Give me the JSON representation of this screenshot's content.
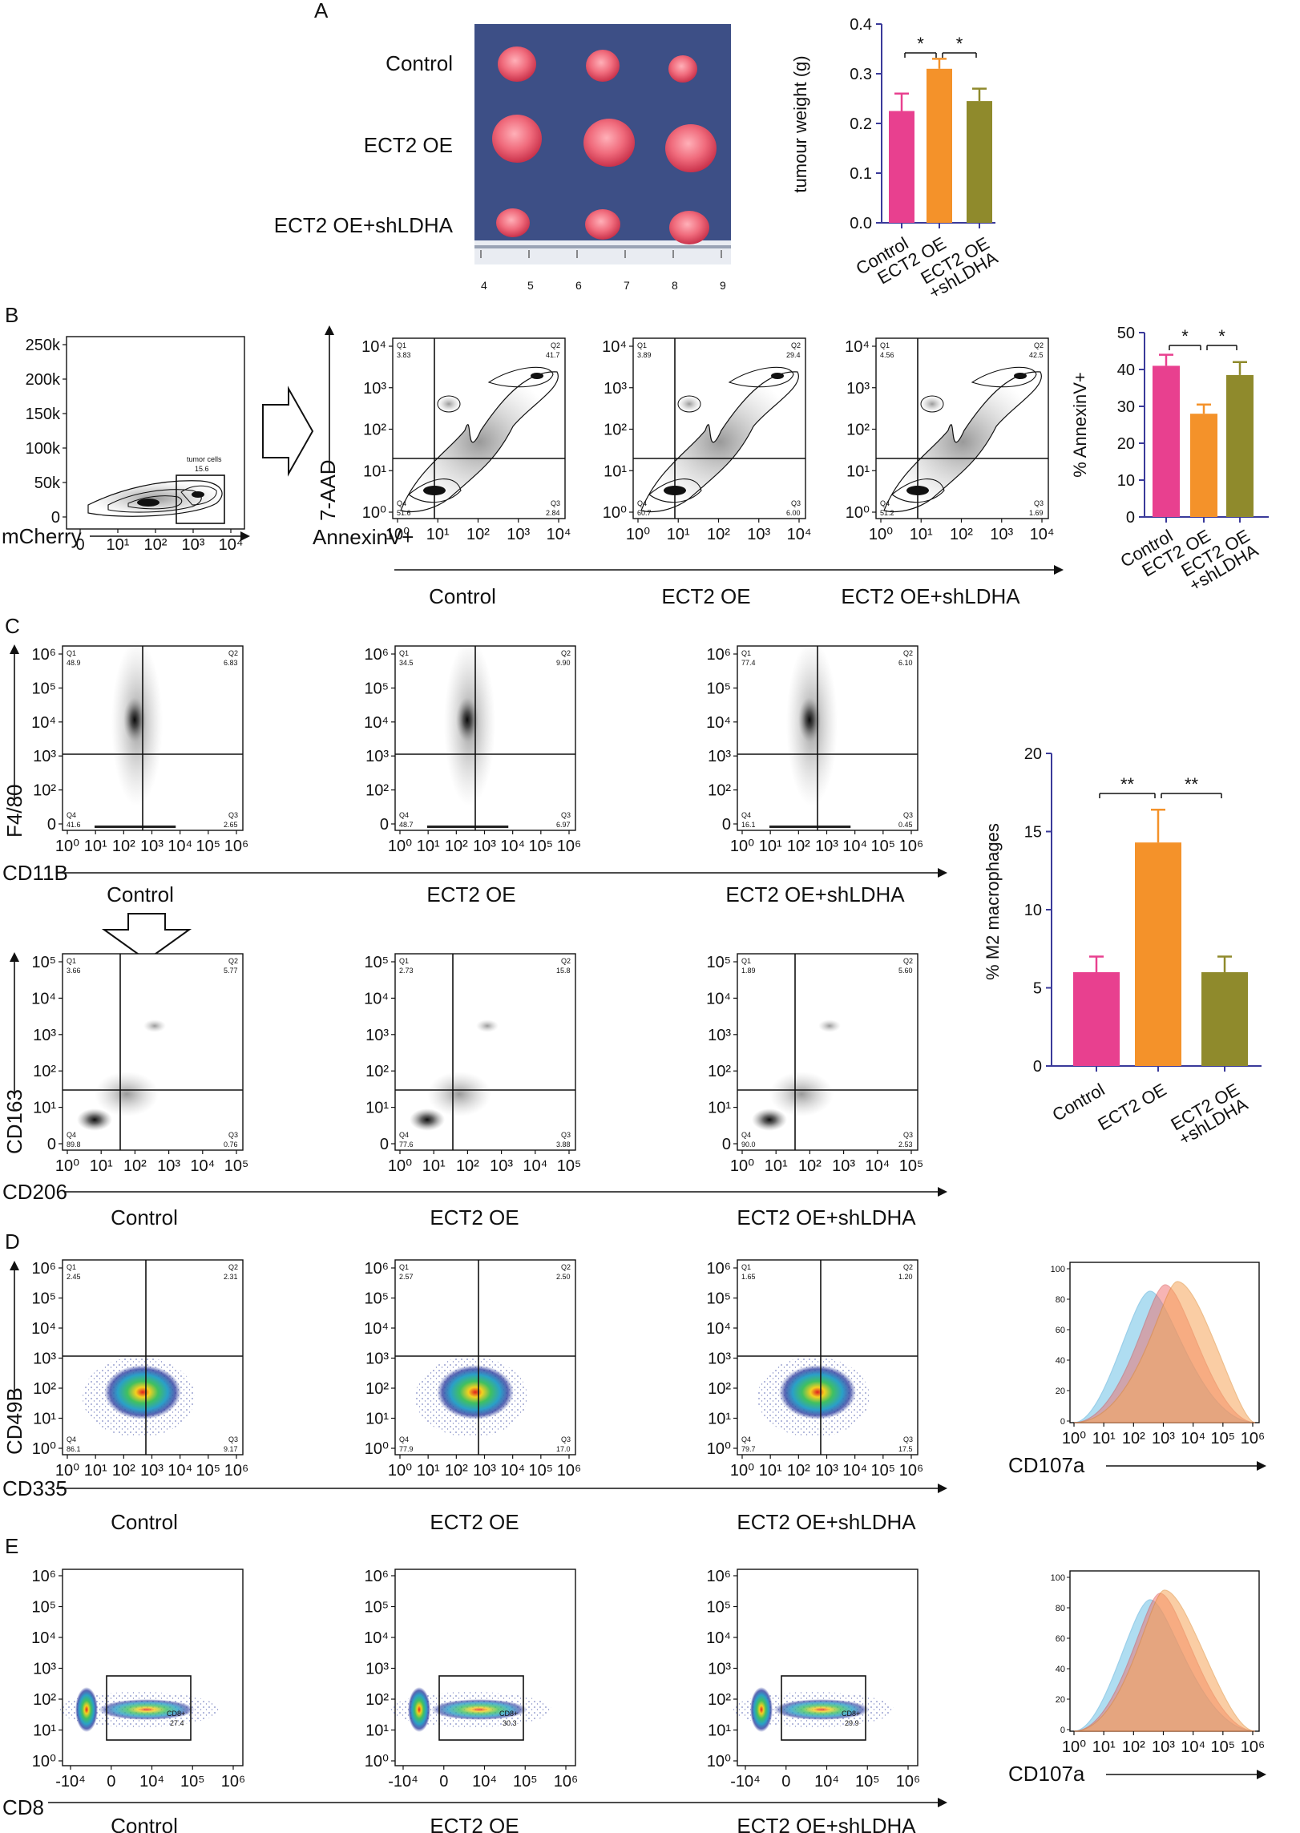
{
  "panels": {
    "A": "A",
    "B": "B",
    "C": "C",
    "D": "D",
    "E": "E"
  },
  "colors": {
    "control": "#e8408f",
    "ect2": "#f4922a",
    "sh": "#8f8a2c",
    "axis": "#3a3a9a",
    "hist_blue": "#6fc3e6",
    "hist_red": "#f06c6c",
    "hist_orange": "#f7a65a"
  },
  "groups": [
    "Control",
    "ECT2 OE",
    "ECT2 OE+shLDHA"
  ],
  "photo": {
    "rows": [
      "Control",
      "ECT2 OE",
      "ECT2 OE+shLDHA"
    ],
    "ruler": [
      "4",
      "5",
      "6",
      "7",
      "8",
      "9"
    ]
  },
  "facs": {
    "b_gate": {
      "xlabel": "mCherry",
      "yticks": [
        "250k",
        "200k",
        "150k",
        "100k",
        "50k",
        "0"
      ],
      "xticks": [
        "0",
        "10¹",
        "10²",
        "10³",
        "10⁴"
      ],
      "gate_label": "tumor cells",
      "gate_value": "15.6"
    },
    "b_apop": {
      "xlabel": "AnnexinV+",
      "ylabel": "7-AAD",
      "yticks": [
        "10⁴",
        "10³",
        "10²",
        "10¹",
        "10⁰"
      ],
      "xticks": [
        "10⁰",
        "10¹",
        "10²",
        "10³",
        "10⁴"
      ],
      "quads": [
        {
          "q1": "3.83",
          "q2": "41.7",
          "q3": "2.84",
          "q4": "51.6"
        },
        {
          "q1": "3.89",
          "q2": "29.4",
          "q3": "6.00",
          "q4": "60.7"
        },
        {
          "q1": "4.56",
          "q2": "42.5",
          "q3": "1.69",
          "q4": "51.2"
        }
      ]
    },
    "c_f480": {
      "xlabel": "CD11B",
      "ylabel": "F4/80",
      "yticks": [
        "10⁶",
        "10⁵",
        "10⁴",
        "10³",
        "10²",
        "0"
      ],
      "xticks": [
        "10⁰",
        "10¹",
        "10²",
        "10³",
        "10⁴",
        "10⁵",
        "10⁶"
      ],
      "quads": [
        {
          "q1": "48.9",
          "q2": "6.83",
          "q3": "2.65",
          "q4": "41.6"
        },
        {
          "q1": "34.5",
          "q2": "9.90",
          "q3": "6.97",
          "q4": "48.7"
        },
        {
          "q1": "77.4",
          "q2": "6.10",
          "q3": "0.45",
          "q4": "16.1"
        }
      ]
    },
    "c_cd163": {
      "xlabel": "CD206",
      "ylabel": "CD163",
      "yticks": [
        "10⁵",
        "10⁴",
        "10³",
        "10²",
        "10¹",
        "0"
      ],
      "xticks": [
        "10⁰",
        "10¹",
        "10²",
        "10³",
        "10⁴",
        "10⁵"
      ],
      "quads": [
        {
          "q1": "3.66",
          "q2": "5.77",
          "q3": "0.76",
          "q4": "89.8"
        },
        {
          "q1": "2.73",
          "q2": "15.8",
          "q3": "3.88",
          "q4": "77.6"
        },
        {
          "q1": "1.89",
          "q2": "5.60",
          "q3": "2.53",
          "q4": "90.0"
        }
      ]
    },
    "d_nk": {
      "xlabel": "CD335",
      "ylabel": "CD49B",
      "yticks": [
        "10⁶",
        "10⁵",
        "10⁴",
        "10³",
        "10²",
        "10¹",
        "10⁰"
      ],
      "xticks": [
        "10⁰",
        "10¹",
        "10²",
        "10³",
        "10⁴",
        "10⁵",
        "10⁶"
      ],
      "quads": [
        {
          "q1": "2.45",
          "q2": "2.31",
          "q3": "9.17",
          "q4": "86.1"
        },
        {
          "q1": "2.57",
          "q2": "2.50",
          "q3": "17.0",
          "q4": "77.9"
        },
        {
          "q1": "1.65",
          "q2": "1.20",
          "q3": "17.5",
          "q4": "79.7"
        }
      ]
    },
    "e_cd8": {
      "xlabel": "CD8",
      "yticks": [
        "10⁶",
        "10⁵",
        "10⁴",
        "10³",
        "10²",
        "10¹",
        "10⁰"
      ],
      "xticks": [
        "-10⁴",
        "0",
        "10⁴",
        "10⁵",
        "10⁶"
      ],
      "gate_label": "CD8+",
      "gates": [
        "27.4",
        "30.3",
        "29.9"
      ]
    },
    "hist": {
      "xlabel": "CD107a",
      "yticks": [
        "100",
        "80",
        "60",
        "40",
        "20",
        "0"
      ],
      "xticks": [
        "10⁰",
        "10¹",
        "10²",
        "10³",
        "10⁴",
        "10⁵",
        "10⁶"
      ]
    },
    "quad_names": {
      "q1": "Q1",
      "q2": "Q2",
      "q3": "Q3",
      "q4": "Q4"
    }
  },
  "chart_data": [
    {
      "type": "bar",
      "title": "",
      "categories": [
        "Control",
        "ECT2 OE",
        "ECT2 OE+shLDHA"
      ],
      "values": [
        0.225,
        0.31,
        0.245
      ],
      "errors": [
        0.035,
        0.02,
        0.025
      ],
      "ylabel": "tumour weight (g)",
      "ylim": [
        0,
        0.4
      ],
      "yticks": [
        "0.0",
        "0.1",
        "0.2",
        "0.3",
        "0.4"
      ],
      "significance": [
        "*",
        "*"
      ]
    },
    {
      "type": "bar",
      "title": "",
      "categories": [
        "Control",
        "ECT2 OE",
        "ECT2 OE+shLDHA"
      ],
      "values": [
        41,
        28,
        38.5
      ],
      "errors": [
        3,
        2.5,
        3.5
      ],
      "ylabel": "% AnnexinV+",
      "ylim": [
        0,
        50
      ],
      "yticks": [
        "0",
        "10",
        "20",
        "30",
        "40",
        "50"
      ],
      "significance": [
        "*",
        "*"
      ]
    },
    {
      "type": "bar",
      "title": "",
      "categories": [
        "Control",
        "ECT2 OE",
        "ECT2 OE+shLDHA"
      ],
      "values": [
        6,
        14.3,
        6
      ],
      "errors": [
        1,
        2.1,
        1
      ],
      "ylabel": "% M2 macrophages",
      "ylim": [
        0,
        20
      ],
      "yticks": [
        "0",
        "5",
        "10",
        "15",
        "20"
      ],
      "significance": [
        "**",
        "**"
      ]
    }
  ]
}
